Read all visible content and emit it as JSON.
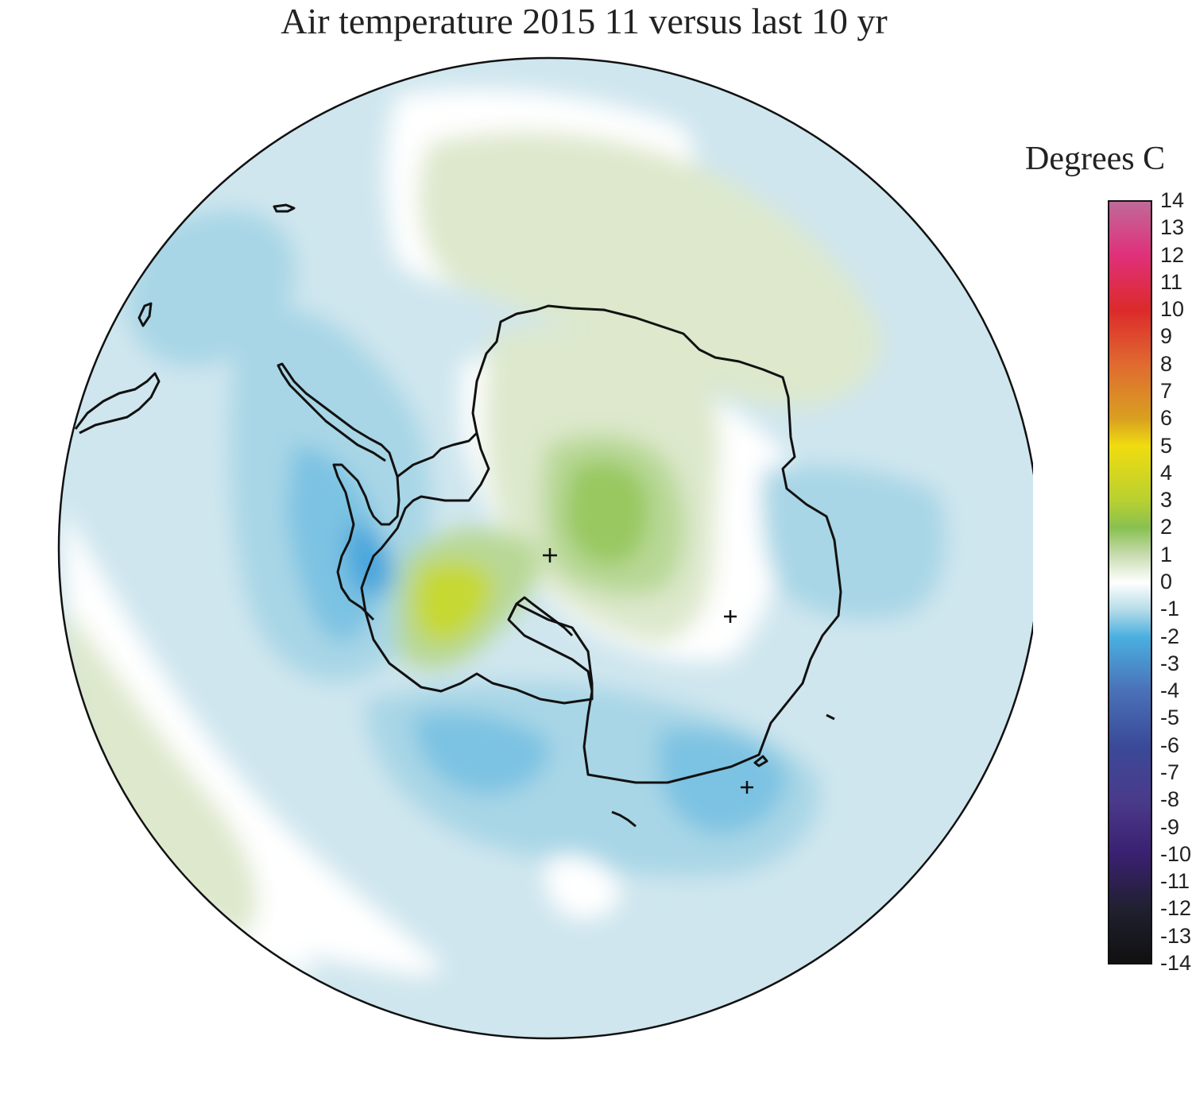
{
  "title": "Air temperature 2015 11 versus last 10 yr",
  "legend": {
    "title": "Degrees C",
    "min": -14,
    "max": 14,
    "tick_labels": [
      "14",
      "13",
      "12",
      "11",
      "10",
      "9",
      "8",
      "7",
      "6",
      "5",
      "4",
      "3",
      "2",
      "1",
      "0",
      "-1",
      "-2",
      "-3",
      "-4",
      "-5",
      "-6",
      "-7",
      "-8",
      "-9",
      "-10",
      "-11",
      "-12",
      "-13",
      "-14"
    ],
    "color_stops": [
      {
        "value": 14,
        "color": "#c06a9a"
      },
      {
        "value": 12,
        "color": "#e0307a"
      },
      {
        "value": 10,
        "color": "#dc2a2a"
      },
      {
        "value": 8,
        "color": "#e06a30"
      },
      {
        "value": 6,
        "color": "#d9a020"
      },
      {
        "value": 5,
        "color": "#f0dc10"
      },
      {
        "value": 3,
        "color": "#b8d030"
      },
      {
        "value": 2,
        "color": "#88c050"
      },
      {
        "value": 1,
        "color": "#c8dcb0"
      },
      {
        "value": 0,
        "color": "#ffffff"
      },
      {
        "value": -1,
        "color": "#b6dce8"
      },
      {
        "value": -2,
        "color": "#4ab0e0"
      },
      {
        "value": -4,
        "color": "#4a70b8"
      },
      {
        "value": -6,
        "color": "#3a4a98"
      },
      {
        "value": -8,
        "color": "#4a3a8a"
      },
      {
        "value": -10,
        "color": "#3a2070"
      },
      {
        "value": -12,
        "color": "#202030"
      },
      {
        "value": -14,
        "color": "#101010"
      }
    ]
  },
  "map_colors": {
    "neg1": "#cfe6ee",
    "neg2": "#a8d6e6",
    "neg3": "#7cc2e2",
    "neg4": "#4aa6dc",
    "zero": "#ffffff",
    "pos1": "#dde8cc",
    "pos2": "#b8d896",
    "pos3": "#98c85e",
    "pos4": "#c6d830",
    "outline": "#111111"
  }
}
